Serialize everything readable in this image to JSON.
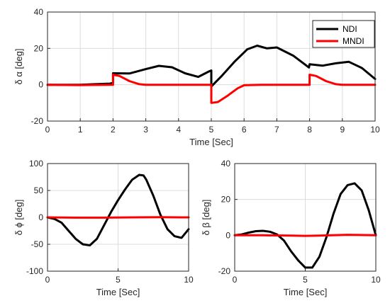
{
  "chart_data": [
    {
      "type": "line",
      "title": "",
      "xlabel": "Time  [Sec]",
      "ylabel": "δ α  [deg]",
      "xlim": [
        0,
        10
      ],
      "ylim": [
        -20,
        40
      ],
      "xticks": [
        "0",
        "1",
        "2",
        "3",
        "4",
        "5",
        "6",
        "7",
        "8",
        "9",
        "10"
      ],
      "yticks": [
        "-20",
        "0",
        "20",
        "40"
      ],
      "grid": true,
      "legend": "top-right",
      "series": [
        {
          "name": "NDI",
          "color": "#000000",
          "x": [
            0,
            1,
            1.9,
            2.0,
            2.0,
            2.5,
            3.0,
            3.4,
            3.8,
            4.2,
            4.6,
            4.95,
            5.0,
            5.0,
            5.3,
            5.7,
            6.1,
            6.4,
            6.7,
            7.0,
            7.5,
            7.98,
            8.0,
            8.0,
            8.4,
            8.8,
            9.2,
            9.6,
            10.0
          ],
          "y": [
            0,
            0,
            0.6,
            1.0,
            6.3,
            6.2,
            8.6,
            10.4,
            9.6,
            6.3,
            4.3,
            7.5,
            7.8,
            -1.0,
            4.5,
            12.5,
            19.5,
            21.5,
            20.0,
            20.5,
            16.0,
            9.5,
            11.3,
            11.3,
            10.5,
            11.8,
            12.6,
            9.2,
            3.2
          ]
        },
        {
          "name": "MNDI",
          "color": "#ff0000",
          "x": [
            0,
            1,
            1.98,
            2.0,
            2.0,
            2.2,
            2.5,
            2.8,
            3.0,
            4.98,
            5.0,
            5.0,
            5.2,
            5.5,
            5.8,
            6.0,
            6.5,
            7.98,
            8.0,
            8.0,
            8.2,
            8.5,
            8.8,
            9.0,
            10.0
          ],
          "y": [
            0,
            -0.2,
            0,
            0,
            5.5,
            4.8,
            2.0,
            0.3,
            0,
            0,
            0,
            -10.0,
            -9.5,
            -6.0,
            -2.0,
            -0.3,
            0,
            0,
            0,
            5.5,
            4.8,
            2.0,
            0.3,
            0,
            0
          ]
        }
      ]
    },
    {
      "type": "line",
      "title": "",
      "xlabel": "Time  [Sec]",
      "ylabel": "δ ϕ  [deg]",
      "xlim": [
        0,
        10
      ],
      "ylim": [
        -100,
        100
      ],
      "xticks": [
        "0",
        "5",
        "10"
      ],
      "yticks": [
        "-100",
        "-50",
        "0",
        "50",
        "100"
      ],
      "grid": true,
      "series": [
        {
          "name": "NDI",
          "color": "#000000",
          "x": [
            0,
            0.5,
            1.0,
            1.5,
            2.0,
            2.5,
            3.0,
            3.5,
            4.0,
            4.5,
            5.0,
            5.5,
            6.0,
            6.5,
            6.8,
            7.0,
            7.5,
            8.0,
            8.5,
            9.0,
            9.5,
            10.0
          ],
          "y": [
            0,
            -3,
            -10,
            -25,
            -40,
            -50,
            -52,
            -40,
            -15,
            10,
            32,
            52,
            70,
            79,
            78,
            70,
            40,
            5,
            -22,
            -35,
            -38,
            -22
          ]
        },
        {
          "name": "MNDI",
          "color": "#ff0000",
          "x": [
            0,
            2,
            4,
            6,
            8,
            10
          ],
          "y": [
            0,
            -0.5,
            -0.5,
            0,
            0.3,
            0
          ]
        }
      ]
    },
    {
      "type": "line",
      "title": "",
      "xlabel": "Time  [Sec]",
      "ylabel": "δ β  [deg]",
      "xlim": [
        0,
        10
      ],
      "ylim": [
        -20,
        40
      ],
      "xticks": [
        "0",
        "5",
        "10"
      ],
      "yticks": [
        "-20",
        "0",
        "20",
        "40"
      ],
      "grid": true,
      "series": [
        {
          "name": "NDI",
          "color": "#000000",
          "x": [
            0,
            0.5,
            1.0,
            1.5,
            2.0,
            2.5,
            3.0,
            3.5,
            4.0,
            4.5,
            5.0,
            5.5,
            6.0,
            6.5,
            7.0,
            7.5,
            8.0,
            8.5,
            9.0,
            9.5,
            10.0
          ],
          "y": [
            0,
            0.5,
            1.5,
            2.3,
            2.5,
            2.0,
            0.5,
            -3,
            -9,
            -14,
            -18,
            -18,
            -12,
            -1,
            12,
            23,
            28,
            29,
            25,
            14,
            0
          ]
        },
        {
          "name": "MNDI",
          "color": "#ff0000",
          "x": [
            0,
            2,
            4,
            5,
            6,
            8,
            10
          ],
          "y": [
            0,
            0,
            -0.2,
            -0.3,
            -0.2,
            0.3,
            0
          ]
        }
      ]
    }
  ]
}
